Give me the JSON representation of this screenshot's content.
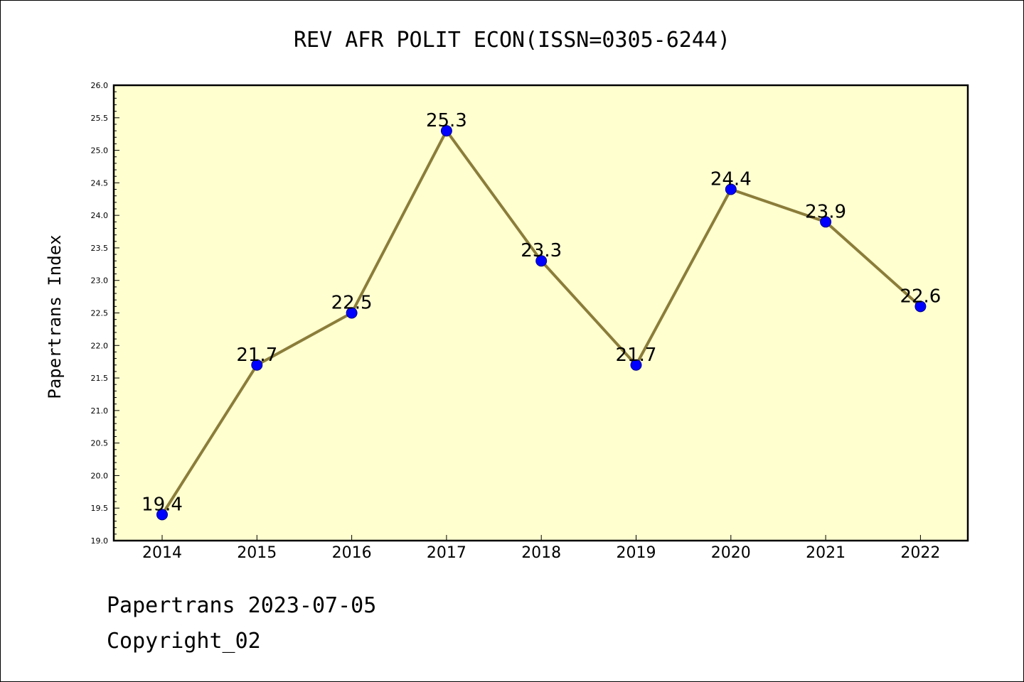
{
  "chart_data": {
    "type": "line",
    "title": "REV AFR POLIT ECON(ISSN=0305-6244)",
    "xlabel": "",
    "ylabel": "Papertrans Index",
    "categories": [
      "2014",
      "2015",
      "2016",
      "2017",
      "2018",
      "2019",
      "2020",
      "2021",
      "2022"
    ],
    "series": [
      {
        "name": "Papertrans Index",
        "values": [
          19.4,
          21.7,
          22.5,
          25.3,
          23.3,
          21.7,
          24.4,
          23.9,
          22.6
        ]
      }
    ],
    "data_labels": [
      "19.4",
      "21.7",
      "22.5",
      "25.3",
      "23.3",
      "21.7",
      "24.4",
      "23.9",
      "22.6"
    ],
    "ylim": [
      19.0,
      26.0
    ],
    "yticks": [
      "19.0",
      "19.5",
      "20.0",
      "20.5",
      "21.0",
      "21.5",
      "22.0",
      "22.5",
      "23.0",
      "23.5",
      "24.0",
      "24.5",
      "25.0",
      "25.5",
      "26.0"
    ],
    "grid": false,
    "legend": "none"
  },
  "colors": {
    "plot_background": "#ffffd0",
    "line": "#8b7d3a",
    "marker_fill": "#0000ff",
    "marker_edge": "#00008b",
    "axis": "#000000"
  },
  "footer": {
    "source": "Papertrans 2023-07-05",
    "copyright": "Copyright_02"
  }
}
